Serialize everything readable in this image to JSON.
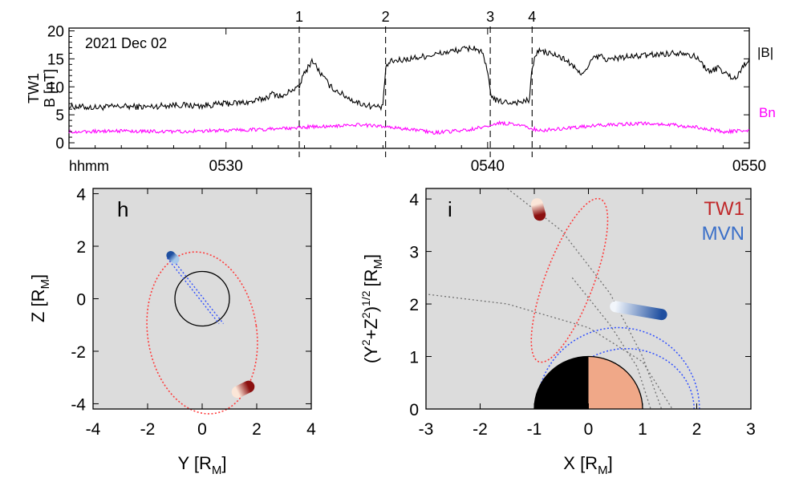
{
  "colors": {
    "bmag": "#000000",
    "bn": "#ff00ff",
    "panel_bg": "#dcdcdc",
    "tw1_orbit": "#ff3b3b",
    "mvn_orbit": "#2f4fff",
    "guide_lines": "#707070",
    "mars_day": "#f0a888",
    "mars_night": "#000000",
    "tw1_label": "#c0282a",
    "mvn_label": "#3a6fc8"
  },
  "chart_data": [
    {
      "type": "line",
      "panel": "top",
      "date_label": "2021 Dec 02",
      "ylabel_line1": "TW1",
      "ylabel_line2": "B [nT]",
      "xlabel": "hhmm",
      "x_ticks": [
        "0530",
        "0540",
        "0550"
      ],
      "x_tick_values": [
        30,
        40,
        50
      ],
      "y_ticks": [
        "0",
        "5",
        "10",
        "15",
        "20"
      ],
      "y_tick_values": [
        0,
        5,
        10,
        15,
        20
      ],
      "xlim": [
        24,
        50
      ],
      "ylim": [
        -1,
        20.5
      ],
      "markers": [
        {
          "label": "1",
          "x": 32.8
        },
        {
          "label": "2",
          "x": 36.1
        },
        {
          "label": "3",
          "x": 40.1
        },
        {
          "label": "4",
          "x": 41.7
        }
      ],
      "series": [
        {
          "name": "|B|",
          "x": [
            24,
            25,
            26,
            27,
            28,
            29,
            30,
            31,
            31.5,
            31.8,
            32.2,
            32.5,
            32.8,
            32.9,
            33.1,
            33.3,
            33.6,
            34.0,
            34.5,
            35.0,
            35.5,
            36.0,
            36.1,
            36.3,
            37,
            38,
            38.8,
            39.2,
            39.5,
            39.8,
            40.0,
            40.1,
            40.3,
            40.8,
            41.3,
            41.6,
            41.7,
            41.9,
            42.5,
            43.0,
            43.5,
            43.8,
            44.0,
            44.3,
            44.6,
            45,
            46,
            47,
            47.5,
            48,
            48.5,
            48.8,
            49.2,
            49.5,
            49.8,
            50
          ],
          "y": [
            6.5,
            6.3,
            6.5,
            6.4,
            6.8,
            6.6,
            7.0,
            7.3,
            8.0,
            8.8,
            8.2,
            9.5,
            9.8,
            11.5,
            13.2,
            14.8,
            12.5,
            10.0,
            8.5,
            7.2,
            6.6,
            6.3,
            13.5,
            14.5,
            15.0,
            15.8,
            16.5,
            16.8,
            17.0,
            16.0,
            12.5,
            9.0,
            7.5,
            7.2,
            7.3,
            7.6,
            13.5,
            16.5,
            15.8,
            14.8,
            12.5,
            13.0,
            15.0,
            15.5,
            14.8,
            15.2,
            15.6,
            16.0,
            16.2,
            15.2,
            12.5,
            13.5,
            12.0,
            11.5,
            14.0,
            15.0
          ]
        },
        {
          "name": "Bn",
          "x": [
            24,
            26,
            28,
            30,
            32,
            33,
            34,
            35,
            36,
            37,
            38,
            39,
            40,
            40.5,
            41,
            41.5,
            42,
            43,
            44,
            45,
            46,
            47,
            48,
            49,
            50
          ],
          "y": [
            2.0,
            2.1,
            2.0,
            2.2,
            2.5,
            2.8,
            3.0,
            3.2,
            3.0,
            2.4,
            1.8,
            2.2,
            2.9,
            3.6,
            3.3,
            2.8,
            2.2,
            2.6,
            3.0,
            3.3,
            3.5,
            3.2,
            2.8,
            2.0,
            2.2
          ]
        }
      ]
    },
    {
      "type": "scatter",
      "panel": "h",
      "panel_label": "h",
      "xlabel": "Y [R",
      "xlabel_sub": "M",
      "xlabel_tail": "]",
      "ylabel": "Z [R",
      "ylabel_sub": "M",
      "ylabel_tail": "]",
      "x_ticks": [
        "-4",
        "-2",
        "0",
        "2",
        "4"
      ],
      "x_tick_values": [
        -4,
        -2,
        0,
        2,
        4
      ],
      "y_ticks": [
        "-4",
        "-2",
        "0",
        "2",
        "4"
      ],
      "y_tick_values": [
        -4,
        -2,
        0,
        2,
        4
      ],
      "xlim": [
        -4,
        4
      ],
      "ylim": [
        -4.2,
        4.2
      ],
      "mars_radius": 1.0,
      "tw1_orbit": {
        "cx": 0.0,
        "cy": -1.3,
        "rx": 2.0,
        "ry": 3.1,
        "rotation_deg": 8
      },
      "mvn_track": {
        "x": [
          -1.2,
          0.7
        ],
        "y": [
          1.55,
          -0.95
        ]
      },
      "tw1_position": {
        "x": [
          1.3,
          1.7
        ],
        "y": [
          -3.55,
          -3.35
        ]
      },
      "mvn_position": {
        "x": [
          -1.15,
          -1.0
        ],
        "y": [
          1.65,
          1.5
        ]
      }
    },
    {
      "type": "scatter",
      "panel": "i",
      "panel_label": "i",
      "xlabel": "X [R",
      "xlabel_sub": "M",
      "xlabel_tail": "]",
      "ylabel": "(Y",
      "ylabel_sup1": "2",
      "ylabel_mid": "+Z",
      "ylabel_sup2": "2",
      "ylabel_close": ")",
      "ylabel_sup3": "1/2",
      "ylabel_unit": "[R",
      "ylabel_sub": "M",
      "ylabel_tail": "]",
      "x_ticks": [
        "-3",
        "-2",
        "-1",
        "0",
        "1",
        "2",
        "3"
      ],
      "x_tick_values": [
        -3,
        -2,
        -1,
        0,
        1,
        2,
        3
      ],
      "y_ticks": [
        "0",
        "1",
        "2",
        "3",
        "4"
      ],
      "y_tick_values": [
        0,
        1,
        2,
        3,
        4
      ],
      "xlim": [
        -3,
        3
      ],
      "ylim": [
        0,
        4.2
      ],
      "legend": [
        "TW1",
        "MVN"
      ],
      "legend_position": "top-right",
      "mars_radius": 1.0,
      "tw1_orbit": {
        "cx": -0.35,
        "cy": 2.45,
        "rx": 0.45,
        "ry": 1.65,
        "rotation_deg": -20
      },
      "mvn_orbit": {
        "cx": 0.55,
        "cy": 0.0,
        "rx": 1.5,
        "ry": 1.55
      },
      "tw1_position": {
        "x": [
          -0.95,
          -0.9
        ],
        "y": [
          3.9,
          3.7
        ]
      },
      "mvn_position": {
        "x": [
          0.5,
          1.35
        ],
        "y": [
          1.95,
          1.8
        ]
      }
    }
  ]
}
